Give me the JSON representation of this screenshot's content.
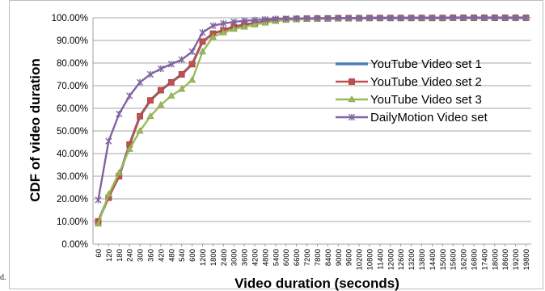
{
  "side_fragment": "d.",
  "chart_data": {
    "type": "line",
    "xlabel": "Video duration (seconds)",
    "ylabel": "CDF  of video duration",
    "ylim": [
      0,
      100
    ],
    "y_ticks": [
      "0.00%",
      "10.00%",
      "20.00%",
      "30.00%",
      "40.00%",
      "50.00%",
      "60.00%",
      "70.00%",
      "80.00%",
      "90.00%",
      "100.00%"
    ],
    "grid": "horizontal",
    "legend_position": "right",
    "categories": [
      "60",
      "120",
      "180",
      "240",
      "300",
      "360",
      "420",
      "480",
      "540",
      "600",
      "1200",
      "1800",
      "2400",
      "3000",
      "3600",
      "4200",
      "4800",
      "5400",
      "6000",
      "6600",
      "7200",
      "7800",
      "8400",
      "9000",
      "9600",
      "10200",
      "10800",
      "11400",
      "12000",
      "12600",
      "13200",
      "13800",
      "14400",
      "15000",
      "15600",
      "16200",
      "16800",
      "17400",
      "18000",
      "18600",
      "19200",
      "19800"
    ],
    "series": [
      {
        "name": "YouTube Video set 1",
        "color": "#4a7ebb",
        "marker": "none",
        "values": [
          10,
          21,
          30,
          44,
          56.5,
          63.5,
          68,
          71.5,
          75,
          79.5,
          89.5,
          93,
          94.5,
          96,
          97,
          97.5,
          98.5,
          99,
          99.3,
          99.5,
          99.6,
          99.7,
          99.7,
          99.8,
          99.8,
          99.8,
          99.9,
          99.9,
          99.9,
          99.9,
          99.9,
          99.9,
          99.9,
          99.9,
          100,
          100,
          100,
          100,
          100,
          100,
          100,
          100
        ]
      },
      {
        "name": "YouTube Video set 2",
        "color": "#c0504d",
        "marker": "square",
        "values": [
          10,
          20.5,
          30,
          44,
          56.5,
          63.5,
          68,
          71.5,
          75,
          79.5,
          89.5,
          93,
          94.5,
          96,
          97,
          97.5,
          98.5,
          99,
          99.3,
          99.5,
          99.6,
          99.7,
          99.7,
          99.8,
          99.8,
          99.8,
          99.9,
          99.9,
          99.9,
          99.9,
          99.9,
          99.9,
          99.9,
          99.9,
          100,
          100,
          100,
          100,
          100,
          100,
          100,
          100
        ]
      },
      {
        "name": "YouTube Video set 3",
        "color": "#9bbb59",
        "marker": "triangle",
        "values": [
          9,
          22,
          31.5,
          42,
          50,
          56.5,
          61.5,
          65.5,
          68.5,
          72.5,
          85,
          91.5,
          93.5,
          95,
          96,
          97,
          97.8,
          98.5,
          99,
          99.2,
          99.4,
          99.5,
          99.6,
          99.7,
          99.7,
          99.8,
          99.8,
          99.8,
          99.9,
          99.9,
          99.9,
          99.9,
          99.9,
          99.9,
          99.9,
          100,
          100,
          100,
          100,
          100,
          100,
          100
        ]
      },
      {
        "name": "DailyMotion Video set",
        "color": "#8064a2",
        "marker": "star",
        "values": [
          19.5,
          45.5,
          57.5,
          65.5,
          71.5,
          75,
          77.5,
          79.5,
          81.5,
          85,
          93.5,
          96.5,
          97.5,
          98.2,
          98.7,
          99,
          99.3,
          99.5,
          99.6,
          99.7,
          99.8,
          99.8,
          99.8,
          99.9,
          99.9,
          99.9,
          99.9,
          99.9,
          99.9,
          99.9,
          100,
          100,
          100,
          100,
          100,
          100,
          100,
          100,
          100,
          100,
          100,
          100
        ]
      }
    ]
  }
}
